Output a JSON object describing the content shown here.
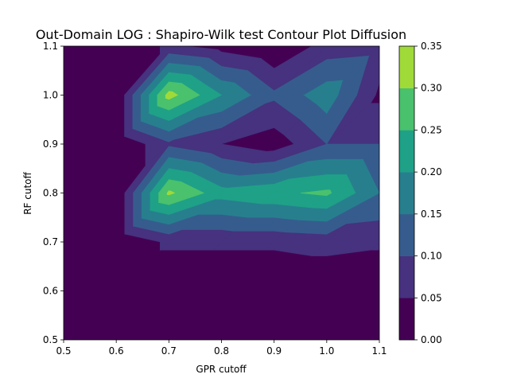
{
  "chart_data": {
    "type": "contour",
    "title": "Out-Domain LOG : Shapiro-Wilk test Contour Plot Diffusion",
    "xlabel": "GPR cutoff",
    "ylabel": "RF cutoff",
    "xlim": [
      0.5,
      1.1
    ],
    "ylim": [
      0.5,
      1.1
    ],
    "x_ticks": [
      "0.5",
      "0.6",
      "0.7",
      "0.8",
      "0.9",
      "1.0",
      "1.1"
    ],
    "y_ticks": [
      "0.5",
      "0.6",
      "0.7",
      "0.8",
      "0.9",
      "1.0",
      "1.1"
    ],
    "grid_x": [
      0.5,
      0.6,
      0.7,
      0.8,
      0.9,
      1.0,
      1.1
    ],
    "grid_y": [
      0.5,
      0.6,
      0.7,
      0.8,
      0.9,
      1.0,
      1.1
    ],
    "z": [
      [
        0.0,
        0.0,
        0.0,
        0.0,
        0.0,
        0.0,
        0.0
      ],
      [
        0.0,
        0.0,
        0.0,
        0.0,
        0.0,
        0.0,
        0.0
      ],
      [
        0.0,
        0.0,
        0.06,
        0.06,
        0.06,
        0.07,
        0.06
      ],
      [
        0.0,
        0.0,
        0.31,
        0.22,
        0.24,
        0.26,
        0.15
      ],
      [
        0.0,
        0.0,
        0.09,
        0.05,
        0.02,
        0.1,
        0.1
      ],
      [
        0.0,
        0.0,
        0.32,
        0.2,
        0.11,
        0.18,
        0.04
      ],
      [
        0.0,
        0.0,
        0.06,
        0.03,
        0.0,
        0.07,
        0.08
      ]
    ],
    "levels": [
      0.0,
      0.05,
      0.1,
      0.15,
      0.2,
      0.25,
      0.3,
      0.35
    ],
    "colorbar_ticks": [
      "0.00",
      "0.05",
      "0.10",
      "0.15",
      "0.20",
      "0.25",
      "0.30",
      "0.35"
    ],
    "colormap": [
      "#440154",
      "#46327e",
      "#365c8d",
      "#277f8e",
      "#1fa187",
      "#4ac16d",
      "#a0da39",
      "#fde725"
    ],
    "band_colors": [
      "#46327e",
      "#3b528b",
      "#2c728e",
      "#21918c",
      "#28ae80",
      "#5ec962",
      "#b8de29"
    ],
    "grid": false
  }
}
